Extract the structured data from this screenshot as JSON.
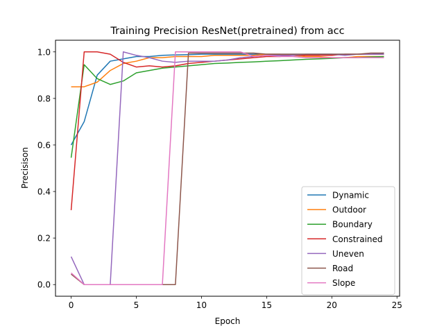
{
  "chart_data": {
    "type": "line",
    "title": "Training Precision ResNet(pretrained) from acc",
    "xlabel": "Epoch",
    "ylabel": "Precisison",
    "xlim": [
      -1.2,
      25.2
    ],
    "ylim": [
      -0.05,
      1.05
    ],
    "xticks": [
      0,
      5,
      10,
      15,
      20,
      25
    ],
    "yticks": [
      0.0,
      0.2,
      0.4,
      0.6,
      0.8,
      1.0
    ],
    "grid": false,
    "legend_position": "lower-right",
    "x": [
      0,
      1,
      2,
      3,
      4,
      5,
      6,
      7,
      8,
      9,
      10,
      11,
      12,
      13,
      14,
      15,
      16,
      17,
      18,
      19,
      20,
      21,
      22,
      23,
      24
    ],
    "series": [
      {
        "name": "Dynamic",
        "color": "#1f77b4",
        "values": [
          0.6,
          0.7,
          0.9,
          0.96,
          0.97,
          0.98,
          0.98,
          0.985,
          0.987,
          0.988,
          0.99,
          0.99,
          0.99,
          0.99,
          0.99,
          0.99,
          0.99,
          0.99,
          0.99,
          0.99,
          0.99,
          0.99,
          0.99,
          0.99,
          0.995
        ]
      },
      {
        "name": "Outdoor",
        "color": "#ff7f0e",
        "values": [
          0.85,
          0.85,
          0.87,
          0.92,
          0.95,
          0.96,
          0.975,
          0.975,
          0.98,
          0.98,
          0.98,
          0.985,
          0.985,
          0.985,
          0.985,
          0.99,
          0.99,
          0.985,
          0.98,
          0.98,
          0.975,
          0.975,
          0.98,
          0.98,
          0.98
        ]
      },
      {
        "name": "Boundary",
        "color": "#2ca02c",
        "values": [
          0.545,
          0.945,
          0.885,
          0.86,
          0.875,
          0.91,
          0.92,
          0.93,
          0.935,
          0.94,
          0.945,
          0.95,
          0.952,
          0.955,
          0.957,
          0.96,
          0.962,
          0.965,
          0.968,
          0.97,
          0.972,
          0.975,
          0.975,
          0.978,
          0.98
        ]
      },
      {
        "name": "Constrained",
        "color": "#d62728",
        "values": [
          0.32,
          1.0,
          1.0,
          0.99,
          0.955,
          0.935,
          0.94,
          0.935,
          0.94,
          0.95,
          0.955,
          0.96,
          0.965,
          0.97,
          0.975,
          0.98,
          0.98,
          0.985,
          0.985,
          0.985,
          0.985,
          0.99,
          0.99,
          0.99,
          0.99
        ]
      },
      {
        "name": "Uneven",
        "color": "#9467bd",
        "values": [
          0.12,
          0.0,
          0.0,
          0.0,
          1.0,
          0.985,
          0.975,
          0.96,
          0.955,
          0.96,
          0.96,
          0.96,
          0.965,
          0.975,
          0.98,
          0.985,
          0.985,
          0.985,
          0.99,
          0.99,
          0.99,
          0.985,
          0.99,
          0.99,
          0.99
        ]
      },
      {
        "name": "Road",
        "color": "#8c564b",
        "values": [
          0.045,
          0.0,
          0.0,
          0.0,
          0.0,
          0.0,
          0.0,
          0.0,
          0.0,
          0.995,
          0.995,
          0.995,
          0.995,
          0.995,
          0.995,
          0.99,
          0.99,
          0.99,
          0.99,
          0.99,
          0.99,
          0.99,
          0.99,
          0.995,
          0.995
        ]
      },
      {
        "name": "Slope",
        "color": "#e377c2",
        "values": [
          0.05,
          0.0,
          0.0,
          0.0,
          0.0,
          0.0,
          0.0,
          0.0,
          1.0,
          1.0,
          1.0,
          1.0,
          1.0,
          1.0,
          0.98,
          0.985,
          0.98,
          0.98,
          0.975,
          0.975,
          0.975,
          0.975,
          0.975,
          0.975,
          0.975
        ]
      }
    ]
  }
}
